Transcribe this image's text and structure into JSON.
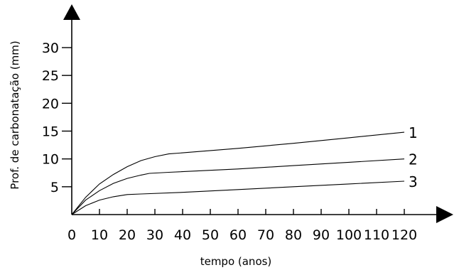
{
  "chart_data": {
    "type": "line",
    "xlabel": "tempo (anos)",
    "ylabel": "Prof. de carbonatação (mm)",
    "x_ticks": [
      0,
      10,
      20,
      30,
      40,
      50,
      60,
      70,
      80,
      90,
      100,
      110,
      120
    ],
    "y_ticks": [
      5,
      10,
      15,
      20,
      25,
      30
    ],
    "xlim": [
      0,
      120
    ],
    "ylim": [
      0,
      30
    ],
    "grid": false,
    "series": [
      {
        "name": "1",
        "x": [
          0,
          5,
          10,
          15,
          20,
          25,
          30,
          35,
          40,
          60,
          80,
          100,
          120
        ],
        "y": [
          0,
          3.1,
          5.5,
          7.2,
          8.6,
          9.7,
          10.4,
          10.9,
          11.1,
          11.9,
          12.8,
          13.8,
          14.8
        ]
      },
      {
        "name": "2",
        "x": [
          0,
          5,
          10,
          15,
          20,
          25,
          28,
          35,
          60,
          80,
          100,
          120
        ],
        "y": [
          0,
          2.6,
          4.3,
          5.6,
          6.5,
          7.1,
          7.4,
          7.6,
          8.2,
          8.8,
          9.4,
          10.0
        ]
      },
      {
        "name": "3",
        "x": [
          0,
          5,
          10,
          15,
          20,
          25,
          40,
          60,
          80,
          100,
          120
        ],
        "y": [
          0,
          1.6,
          2.6,
          3.2,
          3.6,
          3.7,
          4.0,
          4.5,
          5.0,
          5.5,
          6.0
        ]
      }
    ]
  }
}
